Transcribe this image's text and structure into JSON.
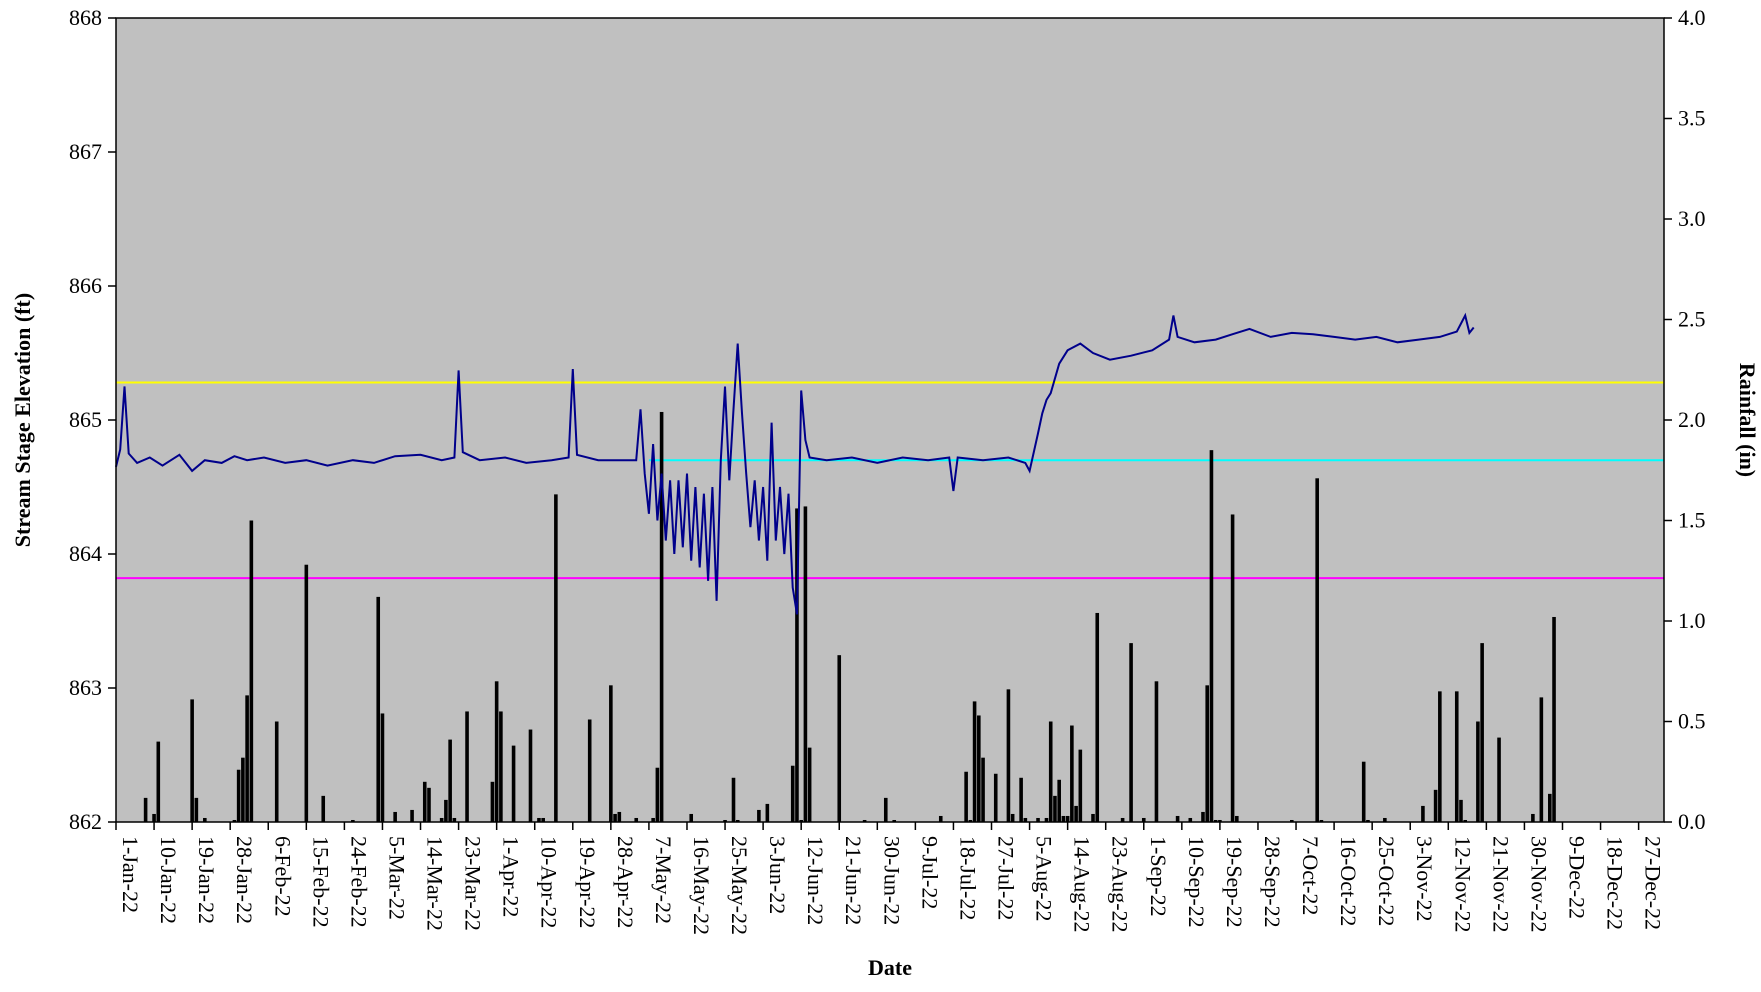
{
  "chart_data": {
    "type": "line",
    "xlabel": "Date",
    "ylabel": "Stream Stage Elevation (ft)",
    "y2label": "Rainfall (in)",
    "ylim": [
      862,
      868
    ],
    "y2lim": [
      0.0,
      4.0
    ],
    "yticks": [
      "862",
      "863",
      "864",
      "865",
      "866",
      "867",
      "868"
    ],
    "y2ticks": [
      "0.0",
      "0.5",
      "1.0",
      "1.5",
      "2.0",
      "2.5",
      "3.0",
      "3.5",
      "4.0"
    ],
    "x_range": [
      "2022-01-01",
      "2023-01-02"
    ],
    "x_tick_labels": [
      "1-Jan-22",
      "10-Jan-22",
      "19-Jan-22",
      "28-Jan-22",
      "6-Feb-22",
      "15-Feb-22",
      "24-Feb-22",
      "5-Mar-22",
      "14-Mar-22",
      "23-Mar-22",
      "1-Apr-22",
      "10-Apr-22",
      "19-Apr-22",
      "28-Apr-22",
      "7-May-22",
      "16-May-22",
      "25-May-22",
      "3-Jun-22",
      "12-Jun-22",
      "21-Jun-22",
      "30-Jun-22",
      "9-Jul-22",
      "18-Jul-22",
      "27-Jul-22",
      "5-Aug-22",
      "14-Aug-22",
      "23-Aug-22",
      "1-Sep-22",
      "10-Sep-22",
      "19-Sep-22",
      "28-Sep-22",
      "7-Oct-22",
      "16-Oct-22",
      "25-Oct-22",
      "3-Nov-22",
      "12-Nov-22",
      "21-Nov-22",
      "30-Nov-22",
      "9-Dec-22",
      "18-Dec-22",
      "27-Dec-22"
    ],
    "grid": false,
    "plot_background": "#c0c0c0",
    "reference_lines": [
      {
        "y": 865.28,
        "color": "#ffff00"
      },
      {
        "y": 864.7,
        "color": "#00ffff",
        "x_start": "2022-05-07"
      },
      {
        "y": 863.82,
        "color": "#ff00ff"
      }
    ],
    "stage_series": {
      "color": "#00008b",
      "points": [
        [
          "2022-01-01",
          864.65
        ],
        [
          "2022-01-02",
          864.78
        ],
        [
          "2022-01-03",
          865.25
        ],
        [
          "2022-01-04",
          864.75
        ],
        [
          "2022-01-06",
          864.68
        ],
        [
          "2022-01-09",
          864.72
        ],
        [
          "2022-01-12",
          864.66
        ],
        [
          "2022-01-16",
          864.74
        ],
        [
          "2022-01-19",
          864.62
        ],
        [
          "2022-01-22",
          864.7
        ],
        [
          "2022-01-26",
          864.68
        ],
        [
          "2022-01-29",
          864.73
        ],
        [
          "2022-02-01",
          864.7
        ],
        [
          "2022-02-05",
          864.72
        ],
        [
          "2022-02-10",
          864.68
        ],
        [
          "2022-02-15",
          864.7
        ],
        [
          "2022-02-20",
          864.66
        ],
        [
          "2022-02-26",
          864.7
        ],
        [
          "2022-03-03",
          864.68
        ],
        [
          "2022-03-08",
          864.73
        ],
        [
          "2022-03-14",
          864.74
        ],
        [
          "2022-03-19",
          864.7
        ],
        [
          "2022-03-22",
          864.72
        ],
        [
          "2022-03-23",
          865.37
        ],
        [
          "2022-03-24",
          864.76
        ],
        [
          "2022-03-28",
          864.7
        ],
        [
          "2022-04-03",
          864.72
        ],
        [
          "2022-04-08",
          864.68
        ],
        [
          "2022-04-14",
          864.7
        ],
        [
          "2022-04-18",
          864.72
        ],
        [
          "2022-04-19",
          865.38
        ],
        [
          "2022-04-20",
          864.74
        ],
        [
          "2022-04-25",
          864.7
        ],
        [
          "2022-04-30",
          864.7
        ],
        [
          "2022-05-04",
          864.7
        ],
        [
          "2022-05-05",
          865.08
        ],
        [
          "2022-05-06",
          864.6
        ],
        [
          "2022-05-07",
          864.3
        ],
        [
          "2022-05-08",
          864.82
        ],
        [
          "2022-05-09",
          864.25
        ],
        [
          "2022-05-10",
          864.6
        ],
        [
          "2022-05-11",
          864.1
        ],
        [
          "2022-05-12",
          864.55
        ],
        [
          "2022-05-13",
          864.0
        ],
        [
          "2022-05-14",
          864.55
        ],
        [
          "2022-05-15",
          864.05
        ],
        [
          "2022-05-16",
          864.6
        ],
        [
          "2022-05-17",
          863.95
        ],
        [
          "2022-05-18",
          864.5
        ],
        [
          "2022-05-19",
          863.9
        ],
        [
          "2022-05-20",
          864.45
        ],
        [
          "2022-05-21",
          863.8
        ],
        [
          "2022-05-22",
          864.5
        ],
        [
          "2022-05-23",
          863.65
        ],
        [
          "2022-05-24",
          864.7
        ],
        [
          "2022-05-25",
          865.25
        ],
        [
          "2022-05-26",
          864.55
        ],
        [
          "2022-05-27",
          865.08
        ],
        [
          "2022-05-28",
          865.57
        ],
        [
          "2022-05-29",
          865.05
        ],
        [
          "2022-05-30",
          864.6
        ],
        [
          "2022-05-31",
          864.2
        ],
        [
          "2022-06-01",
          864.55
        ],
        [
          "2022-06-02",
          864.1
        ],
        [
          "2022-06-03",
          864.5
        ],
        [
          "2022-06-04",
          863.95
        ],
        [
          "2022-06-05",
          864.98
        ],
        [
          "2022-06-06",
          864.1
        ],
        [
          "2022-06-07",
          864.5
        ],
        [
          "2022-06-08",
          864.0
        ],
        [
          "2022-06-09",
          864.45
        ],
        [
          "2022-06-10",
          863.75
        ],
        [
          "2022-06-11",
          863.55
        ],
        [
          "2022-06-12",
          865.22
        ],
        [
          "2022-06-13",
          864.85
        ],
        [
          "2022-06-14",
          864.72
        ],
        [
          "2022-06-18",
          864.7
        ],
        [
          "2022-06-24",
          864.72
        ],
        [
          "2022-06-30",
          864.68
        ],
        [
          "2022-07-06",
          864.72
        ],
        [
          "2022-07-12",
          864.7
        ],
        [
          "2022-07-17",
          864.72
        ],
        [
          "2022-07-18",
          864.47
        ],
        [
          "2022-07-19",
          864.72
        ],
        [
          "2022-07-25",
          864.7
        ],
        [
          "2022-07-31",
          864.72
        ],
        [
          "2022-08-04",
          864.68
        ],
        [
          "2022-08-05",
          864.62
        ],
        [
          "2022-08-07",
          864.9
        ],
        [
          "2022-08-08",
          865.05
        ],
        [
          "2022-08-09",
          865.15
        ],
        [
          "2022-08-10",
          865.2
        ],
        [
          "2022-08-12",
          865.42
        ],
        [
          "2022-08-14",
          865.52
        ],
        [
          "2022-08-17",
          865.57
        ],
        [
          "2022-08-20",
          865.5
        ],
        [
          "2022-08-24",
          865.45
        ],
        [
          "2022-08-29",
          865.48
        ],
        [
          "2022-09-03",
          865.52
        ],
        [
          "2022-09-07",
          865.6
        ],
        [
          "2022-09-08",
          865.78
        ],
        [
          "2022-09-09",
          865.62
        ],
        [
          "2022-09-13",
          865.58
        ],
        [
          "2022-09-18",
          865.6
        ],
        [
          "2022-09-22",
          865.64
        ],
        [
          "2022-09-26",
          865.68
        ],
        [
          "2022-10-01",
          865.62
        ],
        [
          "2022-10-06",
          865.65
        ],
        [
          "2022-10-11",
          865.64
        ],
        [
          "2022-10-16",
          865.62
        ],
        [
          "2022-10-21",
          865.6
        ],
        [
          "2022-10-26",
          865.62
        ],
        [
          "2022-10-31",
          865.58
        ],
        [
          "2022-11-05",
          865.6
        ],
        [
          "2022-11-10",
          865.62
        ],
        [
          "2022-11-14",
          865.66
        ],
        [
          "2022-11-16",
          865.78
        ],
        [
          "2022-11-17",
          865.65
        ],
        [
          "2022-11-18",
          865.69
        ]
      ]
    },
    "rainfall_series": {
      "color": "#000000",
      "bars": [
        [
          "2022-01-08",
          0.12
        ],
        [
          "2022-01-10",
          0.04
        ],
        [
          "2022-01-11",
          0.4
        ],
        [
          "2022-01-19",
          0.61
        ],
        [
          "2022-01-20",
          0.12
        ],
        [
          "2022-01-22",
          0.02
        ],
        [
          "2022-01-29",
          0.01
        ],
        [
          "2022-01-30",
          0.26
        ],
        [
          "2022-01-31",
          0.32
        ],
        [
          "2022-02-01",
          0.63
        ],
        [
          "2022-02-02",
          1.5
        ],
        [
          "2022-02-08",
          0.5
        ],
        [
          "2022-02-15",
          1.28
        ],
        [
          "2022-02-19",
          0.13
        ],
        [
          "2022-02-26",
          0.01
        ],
        [
          "2022-03-04",
          1.12
        ],
        [
          "2022-03-05",
          0.54
        ],
        [
          "2022-03-08",
          0.05
        ],
        [
          "2022-03-12",
          0.06
        ],
        [
          "2022-03-15",
          0.2
        ],
        [
          "2022-03-16",
          0.17
        ],
        [
          "2022-03-19",
          0.02
        ],
        [
          "2022-03-20",
          0.11
        ],
        [
          "2022-03-21",
          0.41
        ],
        [
          "2022-03-22",
          0.02
        ],
        [
          "2022-03-25",
          0.55
        ],
        [
          "2022-03-31",
          0.2
        ],
        [
          "2022-04-01",
          0.7
        ],
        [
          "2022-04-02",
          0.55
        ],
        [
          "2022-04-05",
          0.38
        ],
        [
          "2022-04-09",
          0.46
        ],
        [
          "2022-04-11",
          0.02
        ],
        [
          "2022-04-12",
          0.02
        ],
        [
          "2022-04-15",
          1.63
        ],
        [
          "2022-04-23",
          0.51
        ],
        [
          "2022-04-28",
          0.68
        ],
        [
          "2022-04-29",
          0.04
        ],
        [
          "2022-04-30",
          0.05
        ],
        [
          "2022-05-04",
          0.02
        ],
        [
          "2022-05-08",
          0.02
        ],
        [
          "2022-05-09",
          0.27
        ],
        [
          "2022-05-10",
          2.04
        ],
        [
          "2022-05-17",
          0.04
        ],
        [
          "2022-05-25",
          0.01
        ],
        [
          "2022-05-27",
          0.22
        ],
        [
          "2022-05-28",
          0.01
        ],
        [
          "2022-06-02",
          0.06
        ],
        [
          "2022-06-04",
          0.09
        ],
        [
          "2022-06-10",
          0.28
        ],
        [
          "2022-06-11",
          1.56
        ],
        [
          "2022-06-12",
          0.01
        ],
        [
          "2022-06-13",
          1.57
        ],
        [
          "2022-06-14",
          0.37
        ],
        [
          "2022-06-21",
          0.83
        ],
        [
          "2022-06-27",
          0.01
        ],
        [
          "2022-07-02",
          0.12
        ],
        [
          "2022-07-04",
          0.01
        ],
        [
          "2022-07-15",
          0.03
        ],
        [
          "2022-07-21",
          0.25
        ],
        [
          "2022-07-22",
          0.01
        ],
        [
          "2022-07-23",
          0.6
        ],
        [
          "2022-07-24",
          0.53
        ],
        [
          "2022-07-25",
          0.32
        ],
        [
          "2022-07-28",
          0.24
        ],
        [
          "2022-07-31",
          0.66
        ],
        [
          "2022-08-01",
          0.04
        ],
        [
          "2022-08-03",
          0.22
        ],
        [
          "2022-08-04",
          0.02
        ],
        [
          "2022-08-07",
          0.02
        ],
        [
          "2022-08-09",
          0.02
        ],
        [
          "2022-08-10",
          0.5
        ],
        [
          "2022-08-11",
          0.13
        ],
        [
          "2022-08-12",
          0.21
        ],
        [
          "2022-08-13",
          0.03
        ],
        [
          "2022-08-14",
          0.03
        ],
        [
          "2022-08-15",
          0.48
        ],
        [
          "2022-08-16",
          0.08
        ],
        [
          "2022-08-17",
          0.36
        ],
        [
          "2022-08-20",
          0.04
        ],
        [
          "2022-08-21",
          1.04
        ],
        [
          "2022-08-27",
          0.02
        ],
        [
          "2022-08-29",
          0.89
        ],
        [
          "2022-09-01",
          0.02
        ],
        [
          "2022-09-04",
          0.7
        ],
        [
          "2022-09-09",
          0.03
        ],
        [
          "2022-09-12",
          0.02
        ],
        [
          "2022-09-15",
          0.05
        ],
        [
          "2022-09-16",
          0.68
        ],
        [
          "2022-09-17",
          1.85
        ],
        [
          "2022-09-18",
          0.01
        ],
        [
          "2022-09-19",
          0.01
        ],
        [
          "2022-09-22",
          1.53
        ],
        [
          "2022-09-23",
          0.03
        ],
        [
          "2022-10-06",
          0.01
        ],
        [
          "2022-10-12",
          1.71
        ],
        [
          "2022-10-13",
          0.01
        ],
        [
          "2022-10-23",
          0.3
        ],
        [
          "2022-10-24",
          0.01
        ],
        [
          "2022-10-28",
          0.02
        ],
        [
          "2022-11-06",
          0.08
        ],
        [
          "2022-11-09",
          0.16
        ],
        [
          "2022-11-10",
          0.65
        ],
        [
          "2022-11-14",
          0.65
        ],
        [
          "2022-11-15",
          0.11
        ],
        [
          "2022-11-16",
          0.01
        ],
        [
          "2022-11-19",
          0.5
        ],
        [
          "2022-11-20",
          0.89
        ],
        [
          "2022-11-24",
          0.42
        ],
        [
          "2022-12-02",
          0.04
        ],
        [
          "2022-12-04",
          0.62
        ],
        [
          "2022-12-06",
          0.14
        ],
        [
          "2022-12-07",
          1.02
        ]
      ]
    }
  }
}
